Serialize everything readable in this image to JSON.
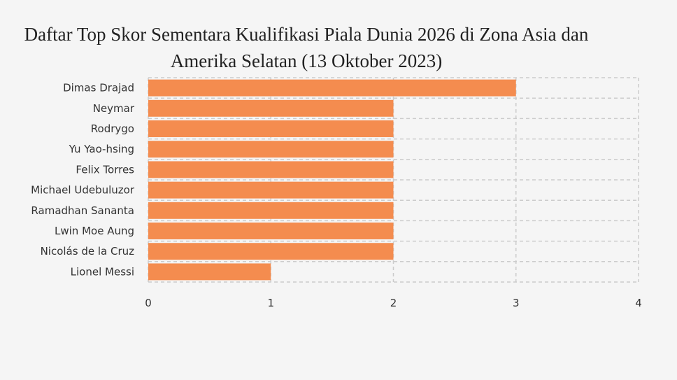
{
  "chart_data": {
    "type": "bar",
    "orientation": "horizontal",
    "title_lines": [
      "Daftar Top Skor Sementara Kualifikasi Piala Dunia 2026 di Zona Asia dan",
      "Amerika Selatan (13 Oktober 2023)"
    ],
    "categories": [
      "Dimas Drajad",
      "Neymar",
      "Rodrygo",
      "Yu Yao-hsing",
      "Felix Torres",
      "Michael Udebuluzor",
      "Ramadhan Sananta",
      "Lwin Moe Aung",
      "Nicolás de la Cruz",
      "Lionel Messi"
    ],
    "values": [
      3,
      2,
      2,
      2,
      2,
      2,
      2,
      2,
      2,
      1
    ],
    "xlim": [
      0,
      4
    ],
    "xticks": [
      "0",
      "1",
      "2",
      "3",
      "4"
    ],
    "grid": true,
    "bar_color": "#f48c4f",
    "grid_color": "#cccccc",
    "legend": false
  }
}
